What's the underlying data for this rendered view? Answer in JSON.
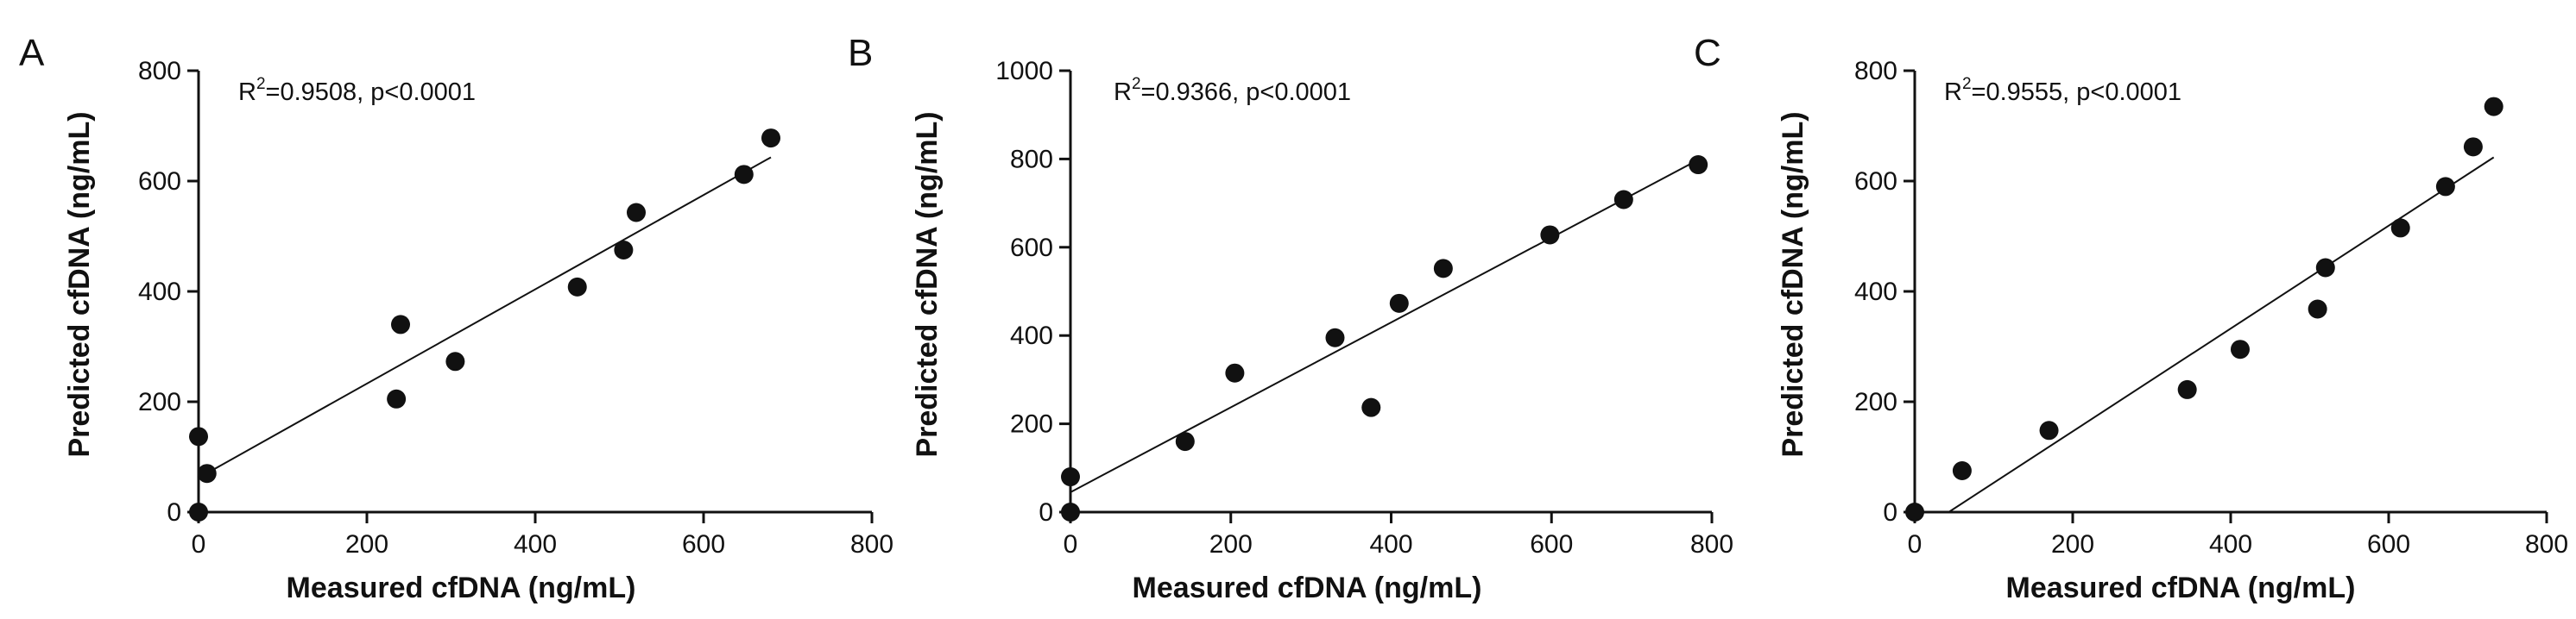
{
  "chart_data": [
    {
      "type": "scatter",
      "panel": "A",
      "xlabel": "Measured cfDNA (ng/mL)",
      "ylabel": "Predicted cfDNA (ng/mL)",
      "xlim": [
        0,
        800
      ],
      "ylim": [
        0,
        800
      ],
      "xticks": [
        "0",
        "200",
        "400",
        "600",
        "800"
      ],
      "yticks": [
        "0",
        "200",
        "400",
        "600",
        "800"
      ],
      "annotation": {
        "prefix": "R",
        "sup": "2",
        "suffix": "=0.9508, p<0.0001"
      },
      "fit_line": {
        "x": [
          0,
          680
        ],
        "y": [
          62,
          643
        ]
      },
      "points": {
        "x": [
          0,
          0,
          10,
          235,
          240,
          305,
          450,
          505,
          520,
          648,
          680
        ],
        "y": [
          0,
          137,
          70,
          205,
          340,
          273,
          408,
          475,
          543,
          612,
          678
        ]
      }
    },
    {
      "type": "scatter",
      "panel": "B",
      "xlabel": "Measured cfDNA (ng/mL)",
      "ylabel": "Predicted cfDNA (ng/mL)",
      "xlim": [
        0,
        800
      ],
      "ylim": [
        0,
        1000
      ],
      "xticks": [
        "0",
        "200",
        "400",
        "600",
        "800"
      ],
      "yticks": [
        "0",
        "200",
        "400",
        "600",
        "800",
        "1000"
      ],
      "annotation": {
        "prefix": "R",
        "sup": "2",
        "suffix": "=0.9366, p<0.0001"
      },
      "fit_line": {
        "x": [
          0,
          785
        ],
        "y": [
          45,
          800
        ]
      },
      "points": {
        "x": [
          0,
          0,
          143,
          205,
          330,
          375,
          410,
          465,
          598,
          690,
          783
        ],
        "y": [
          0,
          80,
          160,
          315,
          395,
          237,
          473,
          552,
          628,
          708,
          787
        ]
      }
    },
    {
      "type": "scatter",
      "panel": "C",
      "xlabel": "Measured cfDNA (ng/mL)",
      "ylabel": "Predicted cfDNA (ng/mL)",
      "xlim": [
        0,
        800
      ],
      "ylim": [
        0,
        800
      ],
      "xticks": [
        "0",
        "200",
        "400",
        "600",
        "800"
      ],
      "yticks": [
        "0",
        "200",
        "400",
        "600",
        "800"
      ],
      "annotation": {
        "prefix": "R",
        "sup": "2",
        "suffix": "=0.9555, p<0.0001"
      },
      "fit_line": {
        "x": [
          43,
          733
        ],
        "y": [
          0,
          643
        ]
      },
      "points": {
        "x": [
          0,
          60,
          170,
          345,
          412,
          510,
          520,
          615,
          672,
          707,
          733
        ],
        "y": [
          0,
          75,
          148,
          222,
          295,
          368,
          443,
          515,
          590,
          662,
          735
        ]
      }
    }
  ]
}
